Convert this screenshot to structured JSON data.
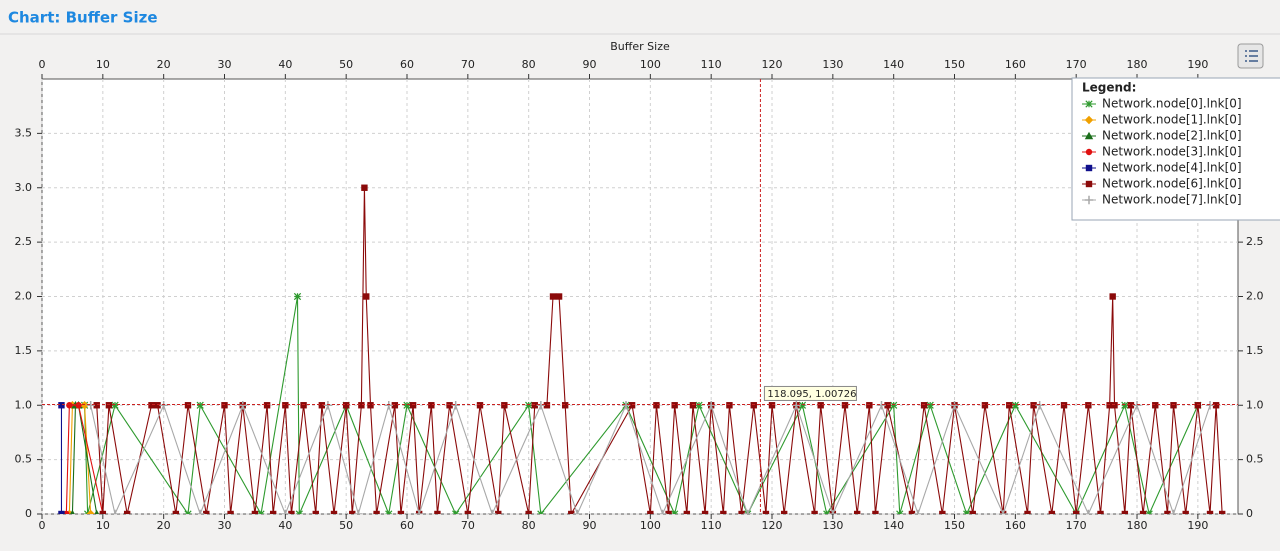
{
  "chart_data": {
    "type": "line",
    "title": "Chart: Buffer Size",
    "x_label": "Buffer Size",
    "xlim": [
      0,
      196.6
    ],
    "xticks": [
      0,
      10,
      20,
      30,
      40,
      50,
      60,
      70,
      80,
      90,
      100,
      110,
      120,
      130,
      140,
      150,
      160,
      170,
      180,
      190
    ],
    "ylim": [
      0,
      4
    ],
    "yticks": [
      0,
      0.5,
      {
        "value": 1,
        "label": "1.0"
      },
      1.5,
      {
        "value": 2,
        "label": "2.0"
      },
      2.5,
      {
        "value": 3,
        "label": "3.0"
      },
      3.5
    ],
    "grid": true,
    "legend_title": "Legend:",
    "legend_corner": "top-right",
    "tooltip": {
      "label": "118.095, 1.00726",
      "x": 118.095,
      "y": 1.00726
    },
    "series": [
      {
        "name": "Network.node[0].lnk[0]",
        "color": "#2e9a2e",
        "marker": "star",
        "x": [
          7,
          7.5,
          12,
          24,
          26,
          36,
          42,
          42.3,
          50,
          57,
          60,
          68,
          80,
          82,
          96,
          104,
          108,
          116,
          125,
          129,
          140,
          141,
          146,
          152,
          160,
          170,
          178,
          182,
          190
        ],
        "values": [
          1,
          0,
          1,
          0,
          1,
          0,
          2,
          0,
          1,
          0,
          1,
          0,
          1,
          0,
          1,
          0,
          1,
          0,
          1,
          0,
          1,
          0,
          1,
          0,
          1,
          0,
          1,
          0,
          1
        ]
      },
      {
        "name": "Network.node[1].lnk[0]",
        "color": "#f0a000",
        "marker": "diamond",
        "x": [
          4.5,
          5,
          7,
          8
        ],
        "values": [
          0,
          1,
          1,
          0
        ]
      },
      {
        "name": "Network.node[2].lnk[0]",
        "color": "#1a6e1a",
        "marker": "triangle",
        "x": [
          5,
          5.5,
          6,
          9
        ],
        "values": [
          0,
          1,
          1,
          0
        ]
      },
      {
        "name": "Network.node[3].lnk[0]",
        "color": "#e01010",
        "marker": "circle",
        "x": [
          4,
          4.5,
          6,
          10
        ],
        "values": [
          0,
          1,
          1,
          0
        ]
      },
      {
        "name": "Network.node[4].lnk[0]",
        "color": "#10108c",
        "marker": "square",
        "x": [
          3.2,
          3.2
        ],
        "values": [
          1,
          0
        ]
      },
      {
        "name": "Network.node[6].lnk[0]",
        "color": "#8b0a0a",
        "marker": "square",
        "x": [
          9,
          10,
          11,
          14,
          18,
          19,
          22,
          24,
          27,
          30,
          31,
          33,
          35,
          37,
          38,
          40,
          41,
          43,
          45,
          46,
          48,
          50,
          51,
          52.5,
          53,
          53.3,
          54,
          55,
          58,
          59,
          61,
          62,
          64,
          65,
          67,
          70,
          72,
          75,
          76,
          80,
          81,
          83,
          84,
          85,
          86,
          87,
          97,
          100,
          101,
          103,
          104,
          106,
          107,
          109,
          110,
          112,
          113,
          115,
          117,
          119,
          120,
          122,
          124,
          127,
          128,
          130,
          132,
          134,
          136,
          137,
          139,
          143,
          145,
          148,
          150,
          153,
          155,
          158,
          159,
          162,
          163,
          166,
          168,
          170,
          172,
          174,
          175.5,
          176,
          176.3,
          178,
          179,
          181,
          183,
          185,
          186,
          188,
          190,
          192,
          193,
          194
        ],
        "values": [
          1,
          0,
          1,
          0,
          1,
          1,
          0,
          1,
          0,
          1,
          0,
          1,
          0,
          1,
          0,
          1,
          0,
          1,
          0,
          1,
          0,
          1,
          0,
          1,
          3,
          2,
          1,
          0,
          1,
          0,
          1,
          0,
          1,
          0,
          1,
          0,
          1,
          0,
          1,
          0,
          1,
          1,
          2,
          2,
          1,
          0,
          1,
          0,
          1,
          0,
          1,
          0,
          1,
          0,
          1,
          0,
          1,
          0,
          1,
          0,
          1,
          0,
          1,
          0,
          1,
          0,
          1,
          0,
          1,
          0,
          1,
          0,
          1,
          0,
          1,
          0,
          1,
          0,
          1,
          0,
          1,
          0,
          1,
          0,
          1,
          0,
          1,
          2,
          1,
          0,
          1,
          0,
          1,
          0,
          1,
          0,
          1,
          0,
          1,
          0
        ]
      },
      {
        "name": "Network.node[7].lnk[0]",
        "color": "#a8a8a8",
        "marker": "plus",
        "x": [
          8,
          12,
          20,
          26,
          33,
          40,
          47,
          52,
          57,
          62,
          68,
          74,
          82,
          88,
          96,
          102,
          110,
          116,
          124,
          130,
          138,
          144,
          150,
          158,
          164,
          172,
          180,
          186,
          192
        ],
        "values": [
          1,
          0,
          1,
          0,
          1,
          0,
          1,
          0,
          1,
          0,
          1,
          0,
          1,
          0,
          1,
          0,
          1,
          0,
          1,
          0,
          1,
          0,
          1,
          0,
          1,
          0,
          1,
          0,
          1
        ]
      }
    ]
  }
}
